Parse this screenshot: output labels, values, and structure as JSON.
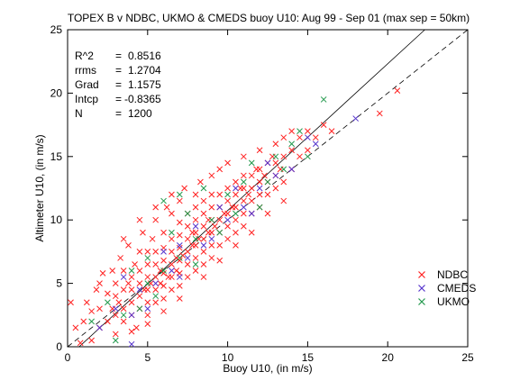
{
  "chart_data": {
    "type": "scatter",
    "title": "TOPEX B v NDBC, UKMO & CMEDS buoy U10: Aug 99 - Sep 01 (max sep = 50km)",
    "xlabel": "Buoy U10, (in m/s)",
    "ylabel": "Altimeter U10, (in m/s)",
    "xlim": [
      0,
      25
    ],
    "ylim": [
      0,
      25
    ],
    "x_ticks": [
      "0",
      "5",
      "10",
      "15",
      "20",
      "25"
    ],
    "y_ticks": [
      "0",
      "5",
      "10",
      "15",
      "20",
      "25"
    ],
    "grid": false,
    "legend_position": "bottom-right",
    "stats": {
      "r2": {
        "label": "R^2",
        "value": "0.8516"
      },
      "rrms": {
        "label": "rrms",
        "value": "1.2704"
      },
      "grad": {
        "label": "Grad",
        "value": "1.1575"
      },
      "intcp": {
        "label": "Intcp",
        "value": "-0.8365"
      },
      "n": {
        "label": "N",
        "value": "1200"
      }
    },
    "fit_line": {
      "slope": 1.1575,
      "intercept": -0.8365,
      "style": "solid"
    },
    "identity_line": {
      "slope": 1,
      "intercept": 0,
      "style": "dashed"
    },
    "series": [
      {
        "name": "NDBC",
        "color": "#ff2020",
        "marker": "x",
        "points": [
          [
            0.2,
            3.5
          ],
          [
            0.5,
            1.5
          ],
          [
            0.8,
            0.3
          ],
          [
            1.0,
            2.0
          ],
          [
            1.2,
            3.5
          ],
          [
            1.5,
            0.5
          ],
          [
            1.5,
            2.8
          ],
          [
            1.8,
            4.5
          ],
          [
            2.0,
            1.5
          ],
          [
            2.0,
            3.0
          ],
          [
            2.2,
            5.8
          ],
          [
            2.5,
            2.0
          ],
          [
            2.5,
            4.2
          ],
          [
            2.8,
            3.0
          ],
          [
            2.8,
            6.0
          ],
          [
            3.0,
            1.0
          ],
          [
            3.0,
            2.5
          ],
          [
            3.0,
            4.0
          ],
          [
            3.0,
            5.0
          ],
          [
            3.2,
            3.5
          ],
          [
            3.3,
            7.0
          ],
          [
            3.5,
            2.0
          ],
          [
            3.5,
            3.0
          ],
          [
            3.5,
            4.5
          ],
          [
            3.5,
            6.0
          ],
          [
            3.8,
            5.0
          ],
          [
            3.8,
            8.0
          ],
          [
            4.0,
            2.5
          ],
          [
            4.0,
            3.5
          ],
          [
            4.0,
            4.5
          ],
          [
            4.0,
            5.5
          ],
          [
            4.2,
            6.5
          ],
          [
            4.3,
            1.5
          ],
          [
            4.5,
            3.0
          ],
          [
            4.5,
            4.0
          ],
          [
            4.5,
            5.0
          ],
          [
            4.5,
            6.0
          ],
          [
            4.5,
            7.5
          ],
          [
            4.7,
            9.0
          ],
          [
            4.8,
            4.5
          ],
          [
            5.0,
            2.5
          ],
          [
            5.0,
            3.5
          ],
          [
            5.0,
            4.5
          ],
          [
            5.0,
            5.5
          ],
          [
            5.0,
            6.5
          ],
          [
            5.0,
            7.5
          ],
          [
            5.2,
            5.0
          ],
          [
            5.3,
            8.5
          ],
          [
            5.5,
            3.5
          ],
          [
            5.5,
            4.5
          ],
          [
            5.5,
            5.5
          ],
          [
            5.5,
            6.5
          ],
          [
            5.5,
            7.5
          ],
          [
            5.5,
            10.0
          ],
          [
            5.8,
            5.0
          ],
          [
            5.8,
            6.0
          ],
          [
            6.0,
            3.8
          ],
          [
            6.0,
            4.8
          ],
          [
            6.0,
            5.8
          ],
          [
            6.0,
            6.8
          ],
          [
            6.0,
            7.8
          ],
          [
            6.0,
            9.0
          ],
          [
            6.2,
            11.0
          ],
          [
            6.3,
            5.5
          ],
          [
            6.5,
            4.5
          ],
          [
            6.5,
            5.5
          ],
          [
            6.5,
            6.5
          ],
          [
            6.5,
            7.5
          ],
          [
            6.5,
            8.5
          ],
          [
            6.5,
            10.5
          ],
          [
            6.8,
            6.0
          ],
          [
            6.8,
            7.0
          ],
          [
            7.0,
            4.8
          ],
          [
            7.0,
            5.8
          ],
          [
            7.0,
            6.8
          ],
          [
            7.0,
            7.8
          ],
          [
            7.0,
            8.8
          ],
          [
            7.0,
            9.8
          ],
          [
            7.0,
            11.5
          ],
          [
            7.2,
            7.2
          ],
          [
            7.3,
            12.5
          ],
          [
            7.5,
            5.5
          ],
          [
            7.5,
            6.5
          ],
          [
            7.5,
            7.5
          ],
          [
            7.5,
            8.5
          ],
          [
            7.5,
            9.5
          ],
          [
            7.5,
            10.5
          ],
          [
            7.8,
            8.0
          ],
          [
            7.8,
            9.0
          ],
          [
            8.0,
            6.0
          ],
          [
            8.0,
            7.0
          ],
          [
            8.0,
            8.0
          ],
          [
            8.0,
            9.0
          ],
          [
            8.0,
            10.0
          ],
          [
            8.0,
            11.0
          ],
          [
            8.0,
            12.0
          ],
          [
            8.2,
            8.5
          ],
          [
            8.3,
            13.0
          ],
          [
            8.5,
            6.5
          ],
          [
            8.5,
            7.5
          ],
          [
            8.5,
            8.5
          ],
          [
            8.5,
            9.5
          ],
          [
            8.5,
            10.5
          ],
          [
            8.5,
            11.5
          ],
          [
            8.8,
            9.0
          ],
          [
            8.8,
            10.0
          ],
          [
            9.0,
            7.0
          ],
          [
            9.0,
            8.0
          ],
          [
            9.0,
            9.0
          ],
          [
            9.0,
            10.0
          ],
          [
            9.0,
            11.0
          ],
          [
            9.0,
            12.0
          ],
          [
            9.0,
            13.5
          ],
          [
            9.2,
            9.5
          ],
          [
            9.5,
            8.0
          ],
          [
            9.5,
            9.0
          ],
          [
            9.5,
            10.0
          ],
          [
            9.5,
            11.0
          ],
          [
            9.5,
            12.0
          ],
          [
            9.5,
            14.0
          ],
          [
            9.8,
            10.5
          ],
          [
            10.0,
            8.5
          ],
          [
            10.0,
            9.5
          ],
          [
            10.0,
            10.5
          ],
          [
            10.0,
            11.5
          ],
          [
            10.0,
            12.5
          ],
          [
            10.0,
            14.5
          ],
          [
            10.3,
            11.0
          ],
          [
            10.5,
            9.0
          ],
          [
            10.5,
            10.0
          ],
          [
            10.5,
            11.0
          ],
          [
            10.5,
            12.0
          ],
          [
            10.5,
            13.0
          ],
          [
            10.8,
            12.5
          ],
          [
            11.0,
            9.5
          ],
          [
            11.0,
            10.5
          ],
          [
            11.0,
            11.5
          ],
          [
            11.0,
            12.5
          ],
          [
            11.0,
            13.5
          ],
          [
            11.0,
            15.0
          ],
          [
            11.3,
            12.0
          ],
          [
            11.5,
            10.5
          ],
          [
            11.5,
            11.5
          ],
          [
            11.5,
            12.5
          ],
          [
            11.5,
            13.5
          ],
          [
            11.8,
            14.0
          ],
          [
            12.0,
            11.0
          ],
          [
            12.0,
            12.0
          ],
          [
            12.0,
            13.0
          ],
          [
            12.0,
            14.0
          ],
          [
            12.0,
            15.5
          ],
          [
            12.3,
            13.5
          ],
          [
            12.5,
            12.0
          ],
          [
            12.5,
            13.0
          ],
          [
            12.5,
            14.5
          ],
          [
            12.8,
            15.0
          ],
          [
            13.0,
            12.5
          ],
          [
            13.0,
            13.5
          ],
          [
            13.0,
            14.5
          ],
          [
            13.0,
            16.0
          ],
          [
            13.3,
            14.0
          ],
          [
            13.5,
            13.0
          ],
          [
            13.5,
            15.0
          ],
          [
            13.5,
            16.5
          ],
          [
            14.0,
            14.0
          ],
          [
            14.0,
            15.5
          ],
          [
            14.0,
            17.0
          ],
          [
            14.5,
            15.0
          ],
          [
            14.5,
            16.5
          ],
          [
            15.0,
            15.5
          ],
          [
            15.0,
            17.0
          ],
          [
            15.5,
            16.5
          ],
          [
            16.0,
            17.5
          ],
          [
            16.5,
            17.0
          ],
          [
            19.5,
            18.4
          ],
          [
            20.6,
            20.2
          ],
          [
            6.0,
            2.8
          ],
          [
            5.0,
            1.8
          ],
          [
            4.0,
            1.2
          ],
          [
            8.5,
            5.5
          ],
          [
            9.5,
            6.8
          ],
          [
            10.5,
            8.0
          ],
          [
            7.0,
            3.8
          ],
          [
            3.5,
            8.5
          ],
          [
            2.0,
            5.0
          ],
          [
            11.5,
            9.0
          ],
          [
            12.5,
            10.5
          ],
          [
            13.5,
            11.5
          ],
          [
            6.5,
            12.0
          ],
          [
            5.5,
            11.0
          ],
          [
            4.5,
            10.0
          ]
        ]
      },
      {
        "name": "CMEDS",
        "color": "#5533cc",
        "marker": "x",
        "points": [
          [
            2.0,
            1.5
          ],
          [
            3.0,
            3.0
          ],
          [
            4.0,
            2.5
          ],
          [
            4.0,
            0.2
          ],
          [
            4.5,
            4.5
          ],
          [
            5.5,
            5.0
          ],
          [
            6.0,
            7.5
          ],
          [
            6.5,
            6.0
          ],
          [
            7.0,
            8.0
          ],
          [
            7.5,
            7.0
          ],
          [
            8.0,
            9.5
          ],
          [
            8.5,
            8.0
          ],
          [
            9.0,
            8.5
          ],
          [
            9.5,
            11.0
          ],
          [
            10.0,
            10.0
          ],
          [
            10.5,
            12.5
          ],
          [
            11.0,
            11.0
          ],
          [
            11.5,
            10.5
          ],
          [
            12.0,
            12.5
          ],
          [
            12.5,
            14.5
          ],
          [
            13.0,
            13.5
          ],
          [
            14.0,
            14.0
          ],
          [
            15.0,
            16.5
          ],
          [
            15.5,
            16.0
          ],
          [
            18.0,
            18.0
          ],
          [
            3.5,
            5.5
          ],
          [
            5.0,
            3.0
          ],
          [
            7.0,
            5.5
          ]
        ]
      },
      {
        "name": "UKMO",
        "color": "#22994c",
        "marker": "x",
        "points": [
          [
            1.5,
            2.0
          ],
          [
            2.5,
            3.5
          ],
          [
            3.0,
            0.5
          ],
          [
            3.5,
            2.5
          ],
          [
            4.0,
            6.0
          ],
          [
            4.5,
            3.0
          ],
          [
            5.0,
            7.0
          ],
          [
            5.5,
            4.0
          ],
          [
            6.0,
            6.0
          ],
          [
            6.5,
            9.0
          ],
          [
            6.0,
            11.5
          ],
          [
            7.0,
            7.0
          ],
          [
            7.5,
            10.5
          ],
          [
            8.0,
            8.5
          ],
          [
            8.5,
            12.5
          ],
          [
            9.0,
            10.0
          ],
          [
            9.5,
            9.0
          ],
          [
            10.0,
            12.0
          ],
          [
            10.5,
            10.5
          ],
          [
            11.0,
            13.0
          ],
          [
            11.5,
            14.5
          ],
          [
            12.0,
            11.0
          ],
          [
            12.5,
            13.0
          ],
          [
            13.0,
            15.0
          ],
          [
            13.5,
            14.0
          ],
          [
            14.0,
            16.0
          ],
          [
            14.5,
            17.0
          ],
          [
            15.0,
            15.0
          ],
          [
            16.0,
            19.5
          ],
          [
            5.0,
            5.0
          ],
          [
            8.0,
            6.5
          ],
          [
            7.0,
            12.0
          ]
        ]
      }
    ]
  }
}
